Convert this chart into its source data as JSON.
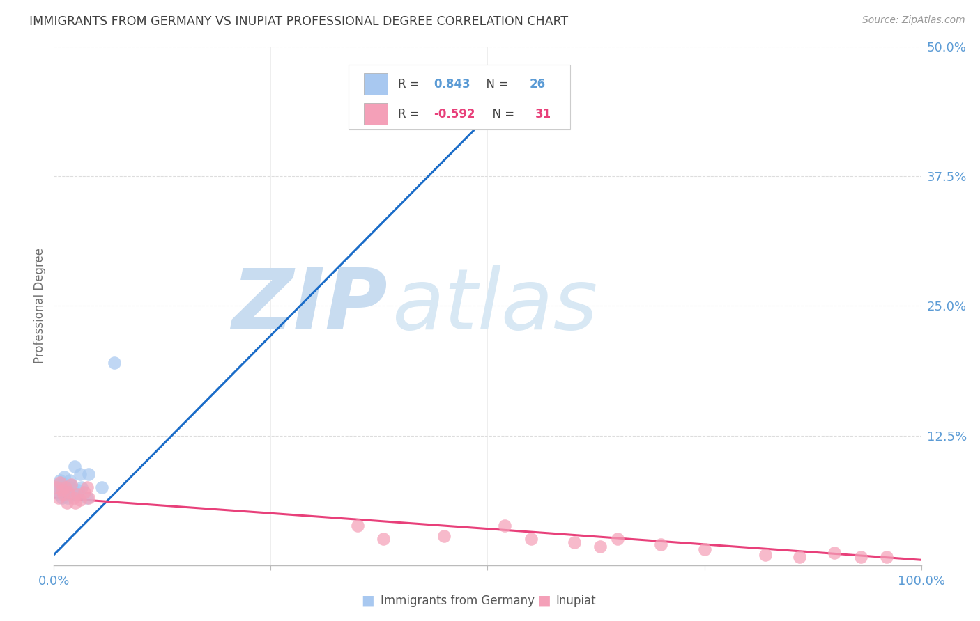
{
  "title": "IMMIGRANTS FROM GERMANY VS INUPIAT PROFESSIONAL DEGREE CORRELATION CHART",
  "source": "Source: ZipAtlas.com",
  "ylabel": "Professional Degree",
  "blue_color": "#A8C8F0",
  "pink_color": "#F4A0B8",
  "blue_line_color": "#1A6CC8",
  "pink_line_color": "#E8407A",
  "watermark_zip": "ZIP",
  "watermark_atlas": "atlas",
  "title_color": "#404040",
  "source_color": "#999999",
  "axis_tick_color": "#5B9BD5",
  "ylabel_color": "#707070",
  "grid_color": "#DDDDDD",
  "blue_line_x": [
    0.0,
    0.55
  ],
  "blue_line_y": [
    0.01,
    0.475
  ],
  "pink_line_x": [
    0.0,
    1.0
  ],
  "pink_line_y": [
    0.065,
    0.005
  ],
  "blue_x": [
    0.003,
    0.005,
    0.006,
    0.007,
    0.008,
    0.009,
    0.01,
    0.011,
    0.012,
    0.013,
    0.014,
    0.015,
    0.016,
    0.018,
    0.019,
    0.02,
    0.022,
    0.024,
    0.025,
    0.028,
    0.03,
    0.032,
    0.038,
    0.04,
    0.055,
    0.07
  ],
  "blue_y": [
    0.072,
    0.078,
    0.068,
    0.082,
    0.075,
    0.065,
    0.079,
    0.073,
    0.085,
    0.068,
    0.076,
    0.071,
    0.065,
    0.082,
    0.075,
    0.077,
    0.072,
    0.095,
    0.068,
    0.072,
    0.088,
    0.075,
    0.065,
    0.088,
    0.075,
    0.195
  ],
  "pink_x": [
    0.003,
    0.005,
    0.007,
    0.009,
    0.011,
    0.013,
    0.015,
    0.017,
    0.02,
    0.023,
    0.025,
    0.027,
    0.03,
    0.035,
    0.038,
    0.04,
    0.35,
    0.38,
    0.45,
    0.52,
    0.55,
    0.6,
    0.63,
    0.65,
    0.7,
    0.75,
    0.82,
    0.86,
    0.9,
    0.93,
    0.96
  ],
  "pink_y": [
    0.075,
    0.065,
    0.08,
    0.072,
    0.068,
    0.075,
    0.06,
    0.07,
    0.078,
    0.065,
    0.06,
    0.068,
    0.063,
    0.07,
    0.075,
    0.065,
    0.038,
    0.025,
    0.028,
    0.038,
    0.025,
    0.022,
    0.018,
    0.025,
    0.02,
    0.015,
    0.01,
    0.008,
    0.012,
    0.008,
    0.008
  ],
  "xlim": [
    0.0,
    1.0
  ],
  "ylim": [
    0.0,
    0.5
  ],
  "ytick_vals": [
    0.0,
    0.125,
    0.25,
    0.375,
    0.5
  ],
  "ytick_labels": [
    "",
    "12.5%",
    "25.0%",
    "37.5%",
    "50.0%"
  ],
  "xtick_vals": [
    0.0,
    0.25,
    0.5,
    0.75,
    1.0
  ],
  "xtick_labels": [
    "0.0%",
    "",
    "",
    "",
    "100.0%"
  ],
  "legend_entries": [
    {
      "R": "0.843",
      "N": "26",
      "color": "#A8C8F0"
    },
    {
      "R": "-0.592",
      "N": "31",
      "color": "#F4A0B8"
    }
  ]
}
